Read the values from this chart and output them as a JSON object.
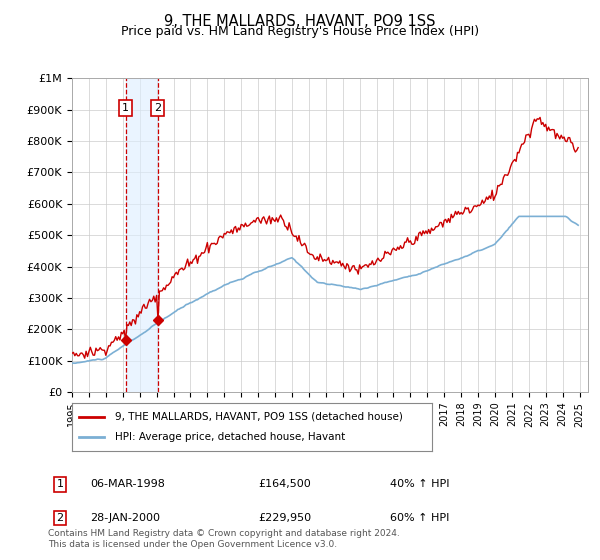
{
  "title": "9, THE MALLARDS, HAVANT, PO9 1SS",
  "subtitle": "Price paid vs. HM Land Registry's House Price Index (HPI)",
  "ylim": [
    0,
    1000000
  ],
  "yticks": [
    0,
    100000,
    200000,
    300000,
    400000,
    500000,
    600000,
    700000,
    800000,
    900000,
    1000000
  ],
  "ytick_labels": [
    "£0",
    "£100K",
    "£200K",
    "£300K",
    "£400K",
    "£500K",
    "£600K",
    "£700K",
    "£800K",
    "£900K",
    "£1M"
  ],
  "background_color": "#ffffff",
  "plot_bg_color": "#ffffff",
  "grid_color": "#cccccc",
  "sale1": {
    "date_num": 1998.17,
    "price": 164500,
    "label": "1",
    "date_str": "06-MAR-1998",
    "price_str": "£164,500",
    "hpi_str": "40% ↑ HPI"
  },
  "sale2": {
    "date_num": 2000.07,
    "price": 229950,
    "label": "2",
    "date_str": "28-JAN-2000",
    "price_str": "£229,950",
    "hpi_str": "60% ↑ HPI"
  },
  "legend_line1": "9, THE MALLARDS, HAVANT, PO9 1SS (detached house)",
  "legend_line2": "HPI: Average price, detached house, Havant",
  "footnote": "Contains HM Land Registry data © Crown copyright and database right 2024.\nThis data is licensed under the Open Government Licence v3.0.",
  "hpi_color": "#7bafd4",
  "price_color": "#cc0000",
  "marker_color": "#cc0000",
  "shade_color": "#ddeeff",
  "box_color": "#cc0000",
  "xmin": 1995.0,
  "xmax": 2025.5
}
